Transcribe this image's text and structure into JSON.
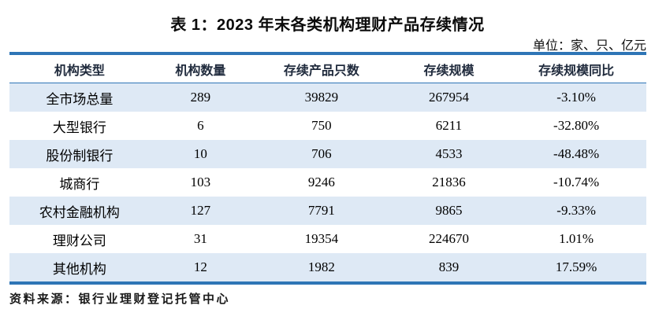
{
  "page": {
    "title": "表 1：2023 年末各类机构理财产品存续情况",
    "unit_label": "单位：家、只、亿元",
    "source": "资料来源：银行业理财登记托管中心"
  },
  "chart_data": {
    "type": "table",
    "columns": [
      "机构类型",
      "机构数量",
      "存续产品只数",
      "存续规模",
      "存续规模同比"
    ],
    "rows": [
      [
        "全市场总量",
        "289",
        "39829",
        "267954",
        "-3.10%"
      ],
      [
        "大型银行",
        "6",
        "750",
        "6211",
        "-32.80%"
      ],
      [
        "股份制银行",
        "10",
        "706",
        "4533",
        "-48.48%"
      ],
      [
        "城商行",
        "103",
        "9246",
        "21836",
        "-10.74%"
      ],
      [
        "农村金融机构",
        "127",
        "7791",
        "9865",
        "-9.33%"
      ],
      [
        "理财公司",
        "31",
        "19354",
        "224670",
        "1.01%"
      ],
      [
        "其他机构",
        "12",
        "1982",
        "839",
        "17.59%"
      ]
    ]
  },
  "colors": {
    "accent_blue": "#2E75B6",
    "row_shade": "#DEE9F5",
    "header_text": "#1F2A3C"
  }
}
